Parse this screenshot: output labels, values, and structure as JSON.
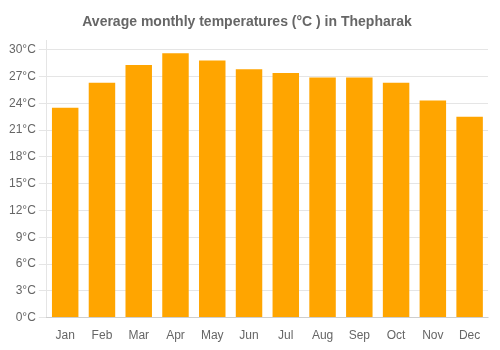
{
  "chart_data": {
    "type": "bar",
    "title": "Average monthly temperatures (°C ) in Thepharak",
    "categories": [
      "Jan",
      "Feb",
      "Mar",
      "Apr",
      "May",
      "Jun",
      "Jul",
      "Aug",
      "Sep",
      "Oct",
      "Nov",
      "Dec"
    ],
    "values": [
      23.5,
      26.3,
      28.3,
      29.6,
      28.8,
      27.8,
      27.4,
      26.9,
      26.9,
      26.3,
      24.3,
      22.5
    ],
    "color": "#FFA500",
    "ylim": [
      0,
      31
    ],
    "yticks": [
      {
        "value": 0,
        "label": "0°C"
      },
      {
        "value": 3,
        "label": "3°C"
      },
      {
        "value": 6,
        "label": "6°C"
      },
      {
        "value": 9,
        "label": "9°C"
      },
      {
        "value": 12,
        "label": "12°C"
      },
      {
        "value": 15,
        "label": "15°C"
      },
      {
        "value": 18,
        "label": "18°C"
      },
      {
        "value": 21,
        "label": "21°C"
      },
      {
        "value": 24,
        "label": "24°C"
      },
      {
        "value": 27,
        "label": "27°C"
      },
      {
        "value": 30,
        "label": "30°C"
      }
    ],
    "grid": true
  }
}
